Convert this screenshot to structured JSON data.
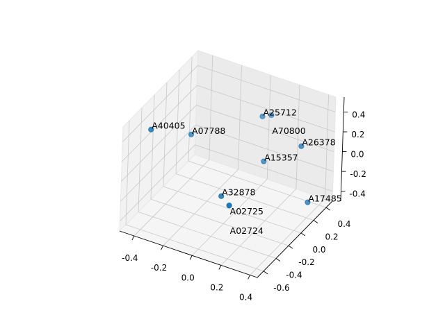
{
  "chart_data": {
    "type": "scatter3d",
    "title": "",
    "xlabel": "",
    "ylabel": "",
    "zlabel": "",
    "xlim": [
      -0.5,
      0.45
    ],
    "ylim": [
      -0.7,
      0.5
    ],
    "zlim": [
      -0.5,
      0.55
    ],
    "xticks": [
      "-0.4",
      "-0.2",
      "0.0",
      "0.2",
      "0.4"
    ],
    "yticks": [
      "-0.6",
      "-0.4",
      "-0.2",
      "0.0",
      "0.2",
      "0.4"
    ],
    "zticks": [
      "-0.4",
      "-0.2",
      "0.0",
      "0.2",
      "0.4"
    ],
    "grid": true,
    "color": "#1f77b4",
    "points": [
      {
        "label": "A40405",
        "x": -0.42,
        "y": -0.43,
        "z": 0.39
      },
      {
        "label": "A07788",
        "x": -0.26,
        "y": -0.15,
        "z": 0.24
      },
      {
        "label": "A25712",
        "x": 0.09,
        "y": 0.17,
        "z": 0.39
      },
      {
        "label": "A70800",
        "x": 0.13,
        "y": 0.22,
        "z": 0.39
      },
      {
        "label": "A26378",
        "x": 0.37,
        "y": 0.15,
        "z": 0.24
      },
      {
        "label": "A15357",
        "x": 0.15,
        "y": 0.07,
        "z": 0.03
      },
      {
        "label": "A32878",
        "x": 0.0,
        "y": -0.25,
        "z": -0.19
      },
      {
        "label": "A02725",
        "x": 0.04,
        "y": -0.21,
        "z": -0.29
      },
      {
        "label": "A02724",
        "x": 0.04,
        "y": -0.21,
        "z": -0.29
      },
      {
        "label": "A17485",
        "x": 0.43,
        "y": 0.14,
        "z": -0.29
      }
    ]
  }
}
